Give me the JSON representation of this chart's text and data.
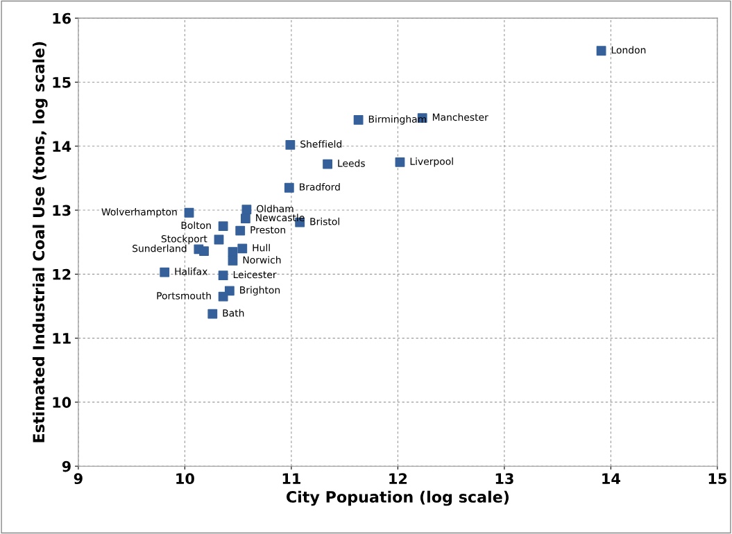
{
  "chart_data": {
    "type": "scatter",
    "xlabel": "City Popuation (log scale)",
    "ylabel": "Estimated Industrial Coal Use (tons, log scale)",
    "xlim": [
      9,
      15
    ],
    "ylim": [
      9,
      16
    ],
    "xticks": [
      9,
      10,
      11,
      12,
      13,
      14,
      15
    ],
    "yticks": [
      9,
      10,
      11,
      12,
      13,
      14,
      15,
      16
    ],
    "grid": true,
    "marker": "square",
    "series": [
      {
        "color": "#35609a",
        "x": [
          13.91,
          12.23,
          11.63,
          10.99,
          11.34,
          12.02,
          10.98,
          10.04,
          10.58,
          10.57,
          11.08,
          10.36,
          10.52,
          10.32,
          10.13,
          10.18,
          10.54,
          10.45,
          10.45,
          9.81,
          10.36,
          10.42,
          10.36,
          10.26
        ],
        "values": [
          15.49,
          14.44,
          14.41,
          14.02,
          13.72,
          13.75,
          13.35,
          12.96,
          13.01,
          12.87,
          12.81,
          12.75,
          12.68,
          12.54,
          12.39,
          12.36,
          12.4,
          12.35,
          12.21,
          12.03,
          11.98,
          11.74,
          11.65,
          11.38
        ]
      }
    ],
    "annotations": [
      {
        "text": "London",
        "x": 13.91,
        "y": 15.49
      },
      {
        "text": "Manchester",
        "x": 12.23,
        "y": 14.44
      },
      {
        "text": "Birmingham",
        "x": 11.63,
        "y": 14.41
      },
      {
        "text": "Sheffield",
        "x": 10.99,
        "y": 14.02
      },
      {
        "text": "Leeds",
        "x": 11.34,
        "y": 13.72
      },
      {
        "text": "Liverpool",
        "x": 12.02,
        "y": 13.75
      },
      {
        "text": "Bradford",
        "x": 10.98,
        "y": 13.35
      },
      {
        "text": "Wolverhampton",
        "x": 10.04,
        "y": 12.96
      },
      {
        "text": "Oldham",
        "x": 10.58,
        "y": 13.01
      },
      {
        "text": "Newcastle",
        "x": 10.57,
        "y": 12.87
      },
      {
        "text": "Bristol",
        "x": 11.08,
        "y": 12.81
      },
      {
        "text": "Bolton",
        "x": 10.36,
        "y": 12.75
      },
      {
        "text": "Preston",
        "x": 10.52,
        "y": 12.68
      },
      {
        "text": "Stockport",
        "x": 10.32,
        "y": 12.54
      },
      {
        "text": "Sunderland",
        "x": 10.13,
        "y": 12.39
      },
      {
        "text": "Hull",
        "x": 10.54,
        "y": 12.4
      },
      {
        "text": "Norwich",
        "x": 10.45,
        "y": 12.21
      },
      {
        "text": "Halifax",
        "x": 9.81,
        "y": 12.03
      },
      {
        "text": "Leicester",
        "x": 10.36,
        "y": 11.98
      },
      {
        "text": "Brighton",
        "x": 10.42,
        "y": 11.74
      },
      {
        "text": "Portsmouth",
        "x": 10.36,
        "y": 11.65
      },
      {
        "text": "Bath",
        "x": 10.26,
        "y": 11.38
      }
    ]
  }
}
